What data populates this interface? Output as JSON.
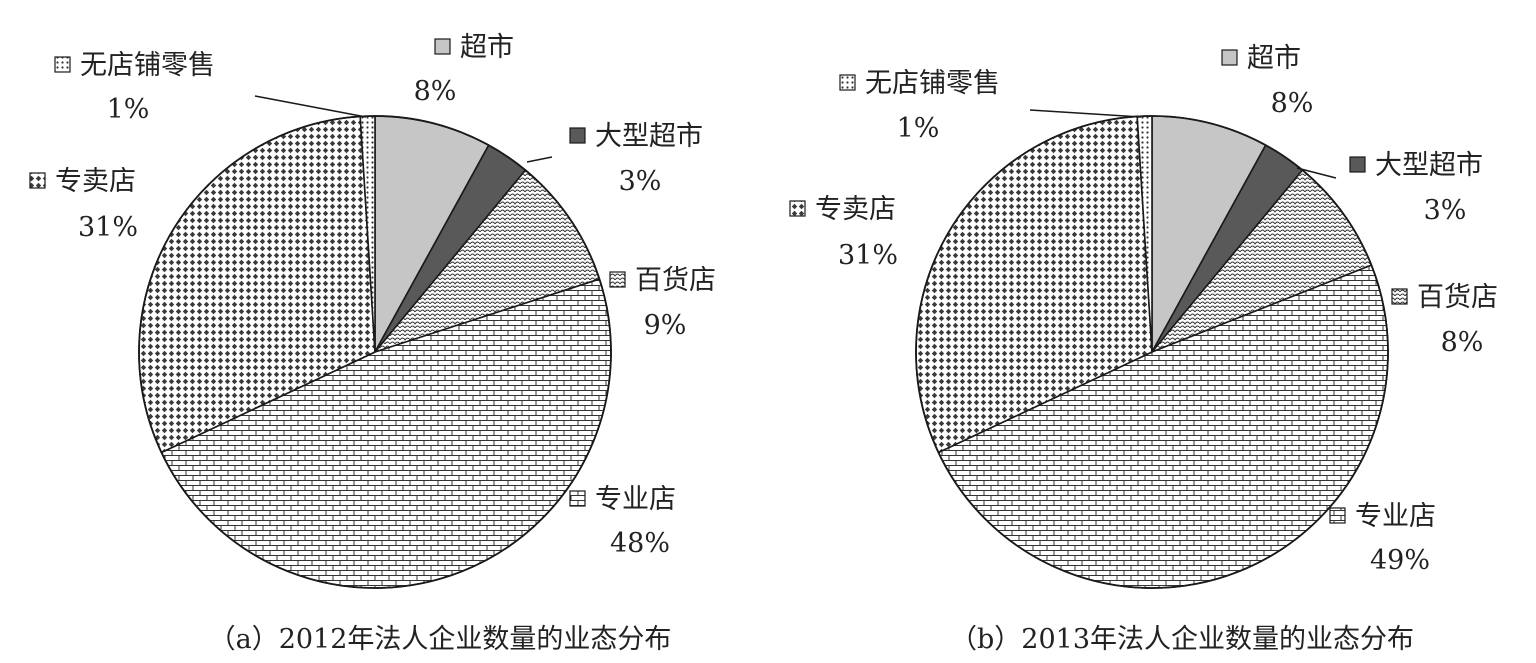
{
  "chart_data": [
    {
      "type": "pie",
      "caption": "（a）2012年法人企业数量的业态分布",
      "slices": [
        {
          "label": "超市",
          "value_label": "8%",
          "value": 8,
          "pattern": "light-gray"
        },
        {
          "label": "大型超市",
          "value_label": "3%",
          "value": 3,
          "pattern": "dark-gray"
        },
        {
          "label": "百货店",
          "value_label": "9%",
          "value": 9,
          "pattern": "scales"
        },
        {
          "label": "专业店",
          "value_label": "48%",
          "value": 48,
          "pattern": "bricks"
        },
        {
          "label": "专卖店",
          "value_label": "31%",
          "value": 31,
          "pattern": "diamonds"
        },
        {
          "label": "无店铺零售",
          "value_label": "1%",
          "value": 1,
          "pattern": "dots"
        }
      ]
    },
    {
      "type": "pie",
      "caption": "（b）2013年法人企业数量的业态分布",
      "slices": [
        {
          "label": "超市",
          "value_label": "8%",
          "value": 8,
          "pattern": "light-gray"
        },
        {
          "label": "大型超市",
          "value_label": "3%",
          "value": 3,
          "pattern": "dark-gray"
        },
        {
          "label": "百货店",
          "value_label": "8%",
          "value": 8,
          "pattern": "scales"
        },
        {
          "label": "专业店",
          "value_label": "49%",
          "value": 49,
          "pattern": "bricks"
        },
        {
          "label": "专卖店",
          "value_label": "31%",
          "value": 31,
          "pattern": "diamonds"
        },
        {
          "label": "无店铺零售",
          "value_label": "1%",
          "value": 1,
          "pattern": "dots"
        }
      ]
    }
  ]
}
